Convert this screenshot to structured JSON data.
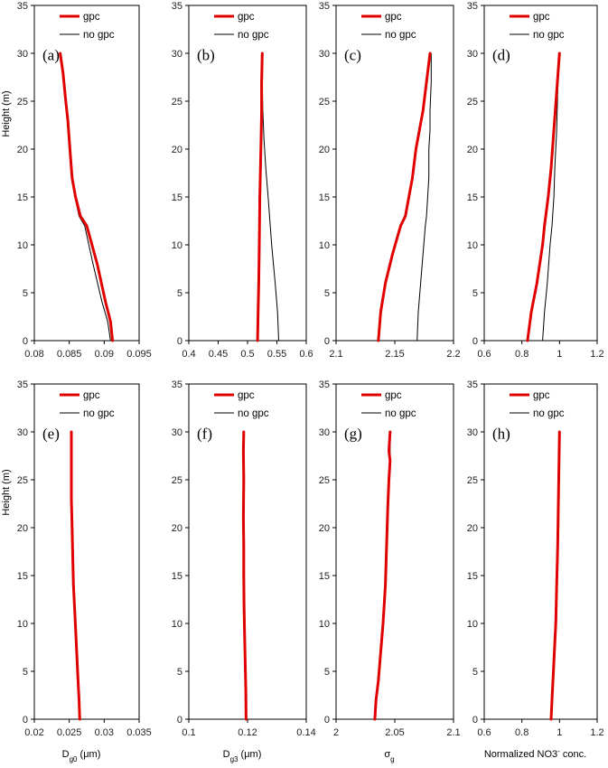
{
  "chart_data": [
    {
      "type": "line",
      "panel_label": "(a)",
      "xlabel": "",
      "ylabel": "Height (m)",
      "xlim": [
        0.08,
        0.095
      ],
      "ylim": [
        0,
        35
      ],
      "xticks": [
        "0.08",
        "0.085",
        "0.09",
        "0.095"
      ],
      "yticks": [
        "0",
        "5",
        "10",
        "15",
        "20",
        "25",
        "30",
        "35"
      ],
      "series": [
        {
          "name": "gpc",
          "color": "#e00000",
          "x": [
            0.0912,
            0.0909,
            0.0902,
            0.089,
            0.0875,
            0.0866,
            0.0859,
            0.0854,
            0.0851,
            0.0848,
            0.0845,
            0.0841,
            0.0837
          ],
          "y": [
            0,
            2,
            4,
            8,
            12,
            13,
            15,
            17,
            20,
            23,
            25,
            28,
            30
          ]
        },
        {
          "name": "no gpc",
          "color": "#000000",
          "x": [
            0.0909,
            0.0905,
            0.0897,
            0.0884,
            0.0872,
            0.0864,
            0.0858,
            0.0854,
            0.0851,
            0.0848,
            0.0845,
            0.0841,
            0.0837
          ],
          "y": [
            0,
            2,
            4,
            8,
            12,
            13,
            15,
            17,
            20,
            23,
            25,
            28,
            30
          ]
        }
      ]
    },
    {
      "type": "line",
      "panel_label": "(b)",
      "xlabel": "",
      "ylabel": "",
      "xlim": [
        0.4,
        0.6
      ],
      "ylim": [
        0,
        35
      ],
      "xticks": [
        "0.4",
        "0.45",
        "0.5",
        "0.55",
        "0.6"
      ],
      "yticks": [
        "0",
        "5",
        "10",
        "15",
        "20",
        "25",
        "30",
        "35"
      ],
      "series": [
        {
          "name": "gpc",
          "color": "#e00000",
          "x": [
            0.517,
            0.518,
            0.519,
            0.52,
            0.521,
            0.522,
            0.523,
            0.524,
            0.524,
            0.525
          ],
          "y": [
            0,
            3,
            6,
            10,
            15,
            18,
            21,
            24,
            27,
            30
          ]
        },
        {
          "name": "no gpc",
          "color": "#000000",
          "x": [
            0.553,
            0.551,
            0.547,
            0.541,
            0.535,
            0.531,
            0.528,
            0.526,
            0.525,
            0.525
          ],
          "y": [
            0,
            3,
            6,
            10,
            15,
            18,
            21,
            24,
            27,
            30
          ]
        }
      ]
    },
    {
      "type": "line",
      "panel_label": "(c)",
      "xlabel": "",
      "ylabel": "",
      "xlim": [
        2.1,
        2.2
      ],
      "ylim": [
        0,
        35
      ],
      "xticks": [
        "2.1",
        "2.15",
        "2.2"
      ],
      "yticks": [
        "0",
        "5",
        "10",
        "15",
        "20",
        "25",
        "30",
        "35"
      ],
      "series": [
        {
          "name": "gpc",
          "color": "#e00000",
          "x": [
            2.136,
            2.138,
            2.142,
            2.148,
            2.155,
            2.159,
            2.162,
            2.165,
            2.168,
            2.171,
            2.174,
            2.177,
            2.18
          ],
          "y": [
            0,
            3,
            6,
            9,
            12,
            13,
            15,
            17,
            20,
            22,
            24,
            27,
            30
          ]
        },
        {
          "name": "no gpc",
          "color": "#000000",
          "x": [
            2.169,
            2.17,
            2.172,
            2.174,
            2.176,
            2.177,
            2.178,
            2.179,
            2.179,
            2.18,
            2.18,
            2.181,
            2.181
          ],
          "y": [
            0,
            3,
            6,
            9,
            12,
            13,
            15,
            17,
            20,
            22,
            24,
            27,
            30
          ]
        }
      ]
    },
    {
      "type": "line",
      "panel_label": "(d)",
      "xlabel": "",
      "ylabel": "",
      "xlim": [
        0.6,
        1.2
      ],
      "ylim": [
        0,
        35
      ],
      "xticks": [
        "0.6",
        "0.8",
        "1",
        "1.2"
      ],
      "yticks": [
        "0",
        "5",
        "10",
        "15",
        "20",
        "25",
        "30",
        "35"
      ],
      "series": [
        {
          "name": "gpc",
          "color": "#e00000",
          "x": [
            0.83,
            0.85,
            0.88,
            0.91,
            0.92,
            0.94,
            0.955,
            0.97,
            0.985,
            1.0
          ],
          "y": [
            0,
            3,
            6,
            10,
            12,
            15,
            18,
            22,
            26,
            30
          ]
        },
        {
          "name": "no gpc",
          "color": "#000000",
          "x": [
            0.91,
            0.92,
            0.935,
            0.95,
            0.96,
            0.97,
            0.975,
            0.985,
            0.99,
            1.0
          ],
          "y": [
            0,
            3,
            6,
            10,
            12,
            15,
            18,
            22,
            26,
            30
          ]
        }
      ]
    },
    {
      "type": "line",
      "panel_label": "(e)",
      "xlabel": "D_g0 (μm)",
      "ylabel": "Height (m)",
      "xlim": [
        0.02,
        0.035
      ],
      "ylim": [
        0,
        35
      ],
      "xticks": [
        "0.02",
        "0.025",
        "0.03",
        "0.035"
      ],
      "yticks": [
        "0",
        "5",
        "10",
        "15",
        "20",
        "25",
        "30",
        "35"
      ],
      "series": [
        {
          "name": "gpc",
          "color": "#e00000",
          "x": [
            0.0265,
            0.0264,
            0.0262,
            0.026,
            0.0258,
            0.0256,
            0.0255,
            0.0254,
            0.0253,
            0.0253,
            0.0253
          ],
          "y": [
            0,
            2,
            5,
            8,
            11,
            14,
            17,
            20,
            23,
            26,
            30
          ]
        },
        {
          "name": "no gpc",
          "color": "#000000",
          "x": [
            0.0265,
            0.0264,
            0.0262,
            0.026,
            0.0258,
            0.0256,
            0.0255,
            0.0254,
            0.0253,
            0.0253,
            0.0252
          ],
          "y": [
            0,
            2,
            5,
            8,
            11,
            14,
            17,
            20,
            23,
            26,
            30
          ]
        }
      ]
    },
    {
      "type": "line",
      "panel_label": "(f)",
      "xlabel": "D_g3 (μm)",
      "ylabel": "",
      "xlim": [
        0.1,
        0.14
      ],
      "ylim": [
        0,
        35
      ],
      "xticks": [
        "0.1",
        "0.12",
        "0.14"
      ],
      "yticks": [
        "0",
        "5",
        "10",
        "15",
        "20",
        "25",
        "30",
        "35"
      ],
      "series": [
        {
          "name": "gpc",
          "color": "#e00000",
          "x": [
            0.1195,
            0.1194,
            0.1192,
            0.119,
            0.1188,
            0.1187,
            0.1187,
            0.1186,
            0.1187,
            0.1186,
            0.1187
          ],
          "y": [
            0,
            3,
            6,
            9,
            12,
            15,
            18,
            21,
            25,
            28,
            30
          ]
        },
        {
          "name": "no gpc",
          "color": "#000000",
          "x": [
            0.1195,
            0.1194,
            0.1192,
            0.119,
            0.1188,
            0.1187,
            0.1186,
            0.1186,
            0.1186,
            0.1186,
            0.1186
          ],
          "y": [
            0,
            3,
            6,
            9,
            12,
            15,
            18,
            21,
            25,
            28,
            30
          ]
        }
      ]
    },
    {
      "type": "line",
      "panel_label": "(g)",
      "xlabel": "σ_g",
      "ylabel": "",
      "xlim": [
        2,
        2.1
      ],
      "ylim": [
        0,
        35
      ],
      "xticks": [
        "2",
        "2.05",
        "2.1"
      ],
      "yticks": [
        "0",
        "5",
        "10",
        "15",
        "20",
        "25",
        "30",
        "35"
      ],
      "series": [
        {
          "name": "gpc",
          "color": "#e00000",
          "x": [
            2.033,
            2.034,
            2.036,
            2.038,
            2.04,
            2.042,
            2.043,
            2.044,
            2.045,
            2.046,
            2.045,
            2.046
          ],
          "y": [
            0,
            2,
            4,
            7,
            10,
            14,
            18,
            22,
            25,
            27,
            28,
            30
          ]
        },
        {
          "name": "no gpc",
          "color": "#000000",
          "x": [
            2.033,
            2.034,
            2.036,
            2.038,
            2.04,
            2.042,
            2.043,
            2.044,
            2.045,
            2.046,
            2.046,
            2.046
          ],
          "y": [
            0,
            2,
            4,
            7,
            10,
            14,
            18,
            22,
            25,
            27,
            28,
            30
          ]
        }
      ]
    },
    {
      "type": "line",
      "panel_label": "(h)",
      "xlabel": "Normalized NO3- conc.",
      "ylabel": "",
      "xlim": [
        0.6,
        1.2
      ],
      "ylim": [
        0,
        35
      ],
      "xticks": [
        "0.6",
        "0.8",
        "1",
        "1.2"
      ],
      "yticks": [
        "0",
        "5",
        "10",
        "15",
        "20",
        "25",
        "30",
        "35"
      ],
      "series": [
        {
          "name": "gpc",
          "color": "#e00000",
          "x": [
            0.955,
            0.96,
            0.97,
            0.98,
            0.985,
            0.99,
            0.995,
            1.0
          ],
          "y": [
            0,
            2,
            6,
            10,
            14,
            18,
            24,
            30
          ]
        },
        {
          "name": "no gpc",
          "color": "#000000",
          "x": [
            0.955,
            0.96,
            0.97,
            0.98,
            0.985,
            0.99,
            0.995,
            1.0
          ],
          "y": [
            0,
            2,
            6,
            10,
            14,
            18,
            24,
            30
          ]
        }
      ]
    }
  ]
}
